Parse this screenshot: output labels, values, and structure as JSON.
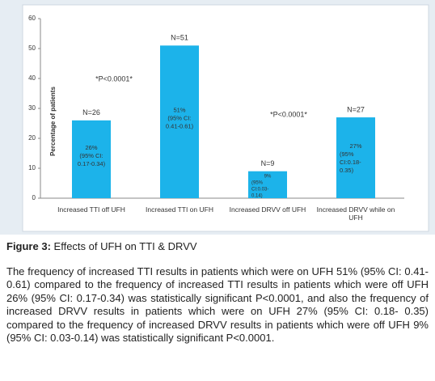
{
  "chart_data": {
    "type": "bar",
    "y_label": "Percentage of patients",
    "categories": [
      "Increased TTI off UFH",
      "Increased TTI on UFH",
      "Increased DRVV off UFH",
      "Increased DRVV while on UFH"
    ],
    "values": [
      26,
      51,
      9,
      27
    ],
    "value_labels": [
      "26%",
      "51%",
      "9%",
      "27%"
    ],
    "n_labels": [
      "N=26",
      "N=51",
      "N=9",
      "N=27"
    ],
    "ci_labels": [
      [
        "(95% CI:",
        "0.17-0.34)"
      ],
      [
        "(95% CI:",
        "0.41-0.61)"
      ],
      [
        "(95%",
        "CI:0.03-",
        "0.14)"
      ],
      [
        "(95%",
        "CI:0.18-",
        "0.35)"
      ]
    ],
    "annotations": [
      "*P<0.0001*",
      "*P<0.0001*"
    ],
    "color": "#1cb3ea",
    "ylim": [
      0,
      60
    ],
    "yticks": [
      0,
      10,
      20,
      30,
      40,
      50,
      60
    ]
  },
  "figure": {
    "label": "Figure 3:",
    "caption": "Effects of UFH on TTI & DRVV"
  },
  "body": "The frequency of increased TTI results in patients which were on UFH 51% (95% CI: 0.41-0.61) compared to the frequency of increased TTI results in patients which were off UFH 26% (95% CI: 0.17-0.34) was statistically significant P<0.0001, and also the frequency of increased DRVV results in patients which were on UFH 27% (95% CI: 0.18- 0.35) compared to the frequency of increased DRVV results in patients which were off UFH 9% (95% CI: 0.03-0.14) was statistically significant P<0.0001."
}
